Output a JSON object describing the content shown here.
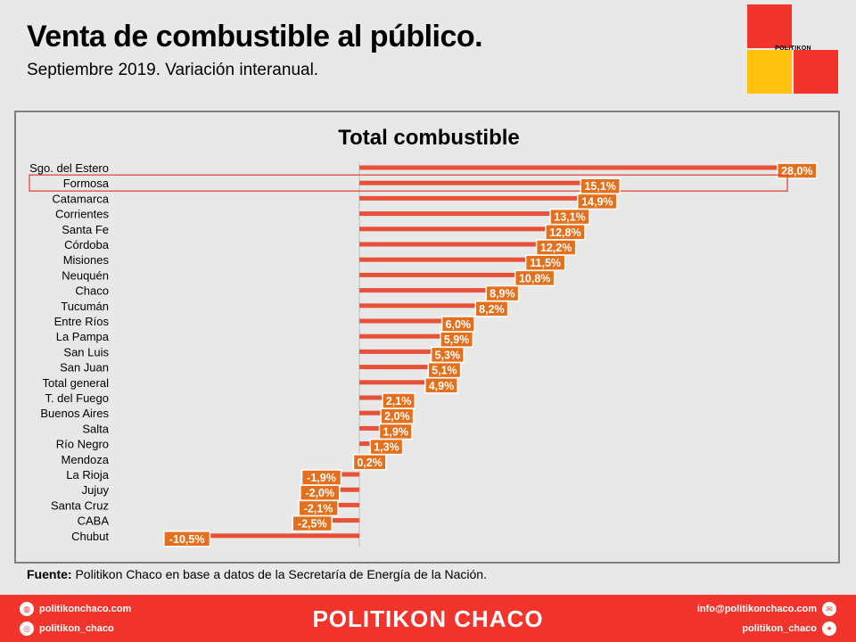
{
  "header": {
    "title": "Venta de combustible al público.",
    "subtitle": "Septiembre 2019. Variación interanual.",
    "logo_text": "POLITIKON"
  },
  "colors": {
    "bar": "#e8503a",
    "label_box": "#e4701d",
    "highlight_box": "#e23b2a",
    "logo_red": "#f2352c",
    "logo_yellow": "#fdc10e"
  },
  "chart_data": {
    "type": "bar",
    "orientation": "horizontal",
    "title": "Total combustible",
    "categories": [
      "Sgo. del Estero",
      "Formosa",
      "Catamarca",
      "Corrientes",
      "Santa Fe",
      "Córdoba",
      "Misiones",
      "Neuquén",
      "Chaco",
      "Tucumán",
      "Entre Ríos",
      "La Pampa",
      "San Luis",
      "San Juan",
      "Total general",
      "T. del Fuego",
      "Buenos Aires",
      "Salta",
      "Río Negro",
      "Mendoza",
      "La Rioja",
      "Jujuy",
      "Santa Cruz",
      "CABA",
      "Chubut"
    ],
    "values": [
      28.0,
      15.1,
      14.9,
      13.1,
      12.8,
      12.2,
      11.5,
      10.8,
      8.9,
      8.2,
      6.0,
      5.9,
      5.3,
      5.1,
      4.9,
      2.1,
      2.0,
      1.9,
      1.3,
      0.2,
      -1.9,
      -2.0,
      -2.1,
      -2.5,
      -10.5
    ],
    "labels": [
      "28,0%",
      "15,1%",
      "14,9%",
      "13,1%",
      "12,8%",
      "12,2%",
      "11,5%",
      "10,8%",
      "8,9%",
      "8,2%",
      "6,0%",
      "5,9%",
      "5,3%",
      "5,1%",
      "4,9%",
      "2,1%",
      "2,0%",
      "1,9%",
      "1,3%",
      "0,2%",
      "-1,9%",
      "-2,0%",
      "-2,1%",
      "-2,5%",
      "-10,5%"
    ],
    "highlight": "Formosa",
    "xlim": [
      -14.0,
      29.0
    ],
    "grid": false,
    "legend": "none"
  },
  "source": {
    "label": "Fuente:",
    "text": "Politikon Chaco en base a datos de la Secretaría de Energía de la Nación."
  },
  "footer": {
    "brand": "POLITIKON CHACO",
    "website": "politikonchaco.com",
    "instagram": "politikon_chaco",
    "email": "info@politikonchaco.com",
    "twitter": "politikon_chaco",
    "website_icon": "globe-icon",
    "instagram_icon": "instagram-icon",
    "email_icon": "mail-icon",
    "twitter_icon": "twitter-icon"
  }
}
